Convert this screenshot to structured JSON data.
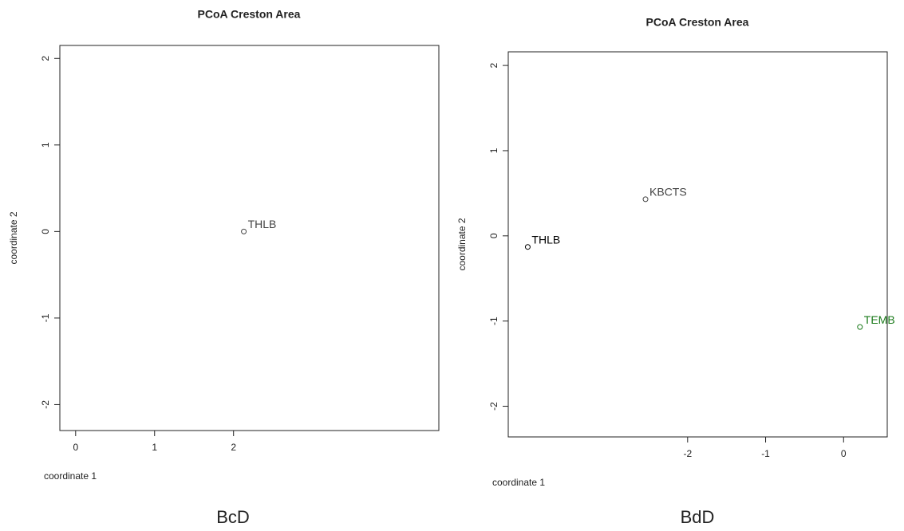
{
  "chart_data": [
    {
      "type": "scatter",
      "title": "PCoA Creston Area",
      "x_label": "coordinate 1",
      "y_label": "coordinate 2",
      "x": [
        2.13
      ],
      "values": [
        0
      ],
      "labels": [
        "THLB"
      ],
      "point_colors": [
        "#444444"
      ],
      "xlim": [
        -0.2,
        4.6
      ],
      "ylim": [
        -2.3,
        2.15
      ],
      "xticks": [
        0,
        1,
        2
      ],
      "yticks": [
        -2,
        -1,
        0,
        1,
        2
      ]
    },
    {
      "type": "scatter",
      "title": "PCoA Creston Area",
      "x_label": "coordinate 1",
      "y_label": "coordinate 2",
      "x": [
        -2.54,
        -4.05,
        0.21
      ],
      "values": [
        0.43,
        -0.13,
        -1.07
      ],
      "labels": [
        "KBCTS",
        "THLB",
        "TEMB"
      ],
      "point_colors": [
        "#444444",
        "#000000",
        "#1a7a1a"
      ],
      "xlim": [
        -4.3,
        0.56
      ],
      "ylim": [
        -2.36,
        2.16
      ],
      "xticks": [
        -2,
        -1,
        0
      ],
      "yticks": [
        -2,
        -1,
        0,
        1,
        2
      ]
    }
  ],
  "captions": [
    "BcD",
    "BdD"
  ]
}
